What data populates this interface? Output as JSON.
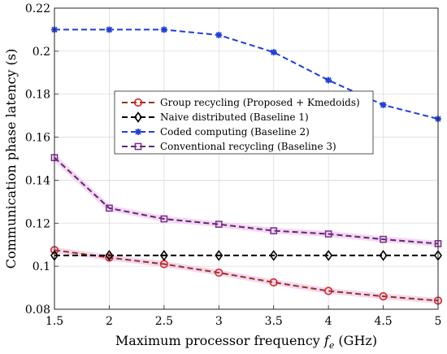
{
  "chart_data": {
    "type": "line",
    "xlabel": "Maximum processor frequency f_e (GHz)",
    "xlabel_parts": {
      "prefix": "Maximum processor frequency ",
      "var": "f",
      "sub": "e",
      "suffix": " (GHz)"
    },
    "ylabel": "Communication phase latency (s)",
    "xlim": [
      1.5,
      5
    ],
    "ylim": [
      0.08,
      0.22
    ],
    "xticks": [
      "1.5",
      "2",
      "2.5",
      "3",
      "3.5",
      "4",
      "4.5",
      "5"
    ],
    "yticks": [
      "0.08",
      "0.1",
      "0.12",
      "0.14",
      "0.16",
      "0.18",
      "0.2",
      "0.22"
    ],
    "grid": true,
    "legend_position": "center",
    "x": [
      1.5,
      2,
      2.5,
      3,
      3.5,
      4,
      4.5,
      5
    ],
    "series": [
      {
        "name": "Group recycling (Proposed + Kmedoids)",
        "color": "#d62728",
        "line_color": "#8b3a1a",
        "marker": "circle",
        "values": [
          0.1075,
          0.104,
          0.101,
          0.097,
          0.0925,
          0.0885,
          0.086,
          0.084
        ]
      },
      {
        "name": "Naive distributed (Baseline 1)",
        "color": "#000000",
        "line_color": "#000000",
        "marker": "diamond",
        "values": [
          0.105,
          0.105,
          0.105,
          0.105,
          0.105,
          0.105,
          0.105,
          0.105
        ]
      },
      {
        "name": "Coded computing (Baseline 2)",
        "color": "#1f3fd6",
        "line_color": "#1f3fd6",
        "marker": "star",
        "values": [
          0.21,
          0.21,
          0.21,
          0.2075,
          0.1995,
          0.1865,
          0.175,
          0.1685
        ]
      },
      {
        "name": "Conventional recycling (Baseline 3)",
        "color": "#7b2d8e",
        "line_color": "#5a2a7a",
        "marker": "square",
        "values": [
          0.1505,
          0.127,
          0.122,
          0.1195,
          0.1165,
          0.115,
          0.1125,
          0.1105
        ]
      }
    ]
  }
}
